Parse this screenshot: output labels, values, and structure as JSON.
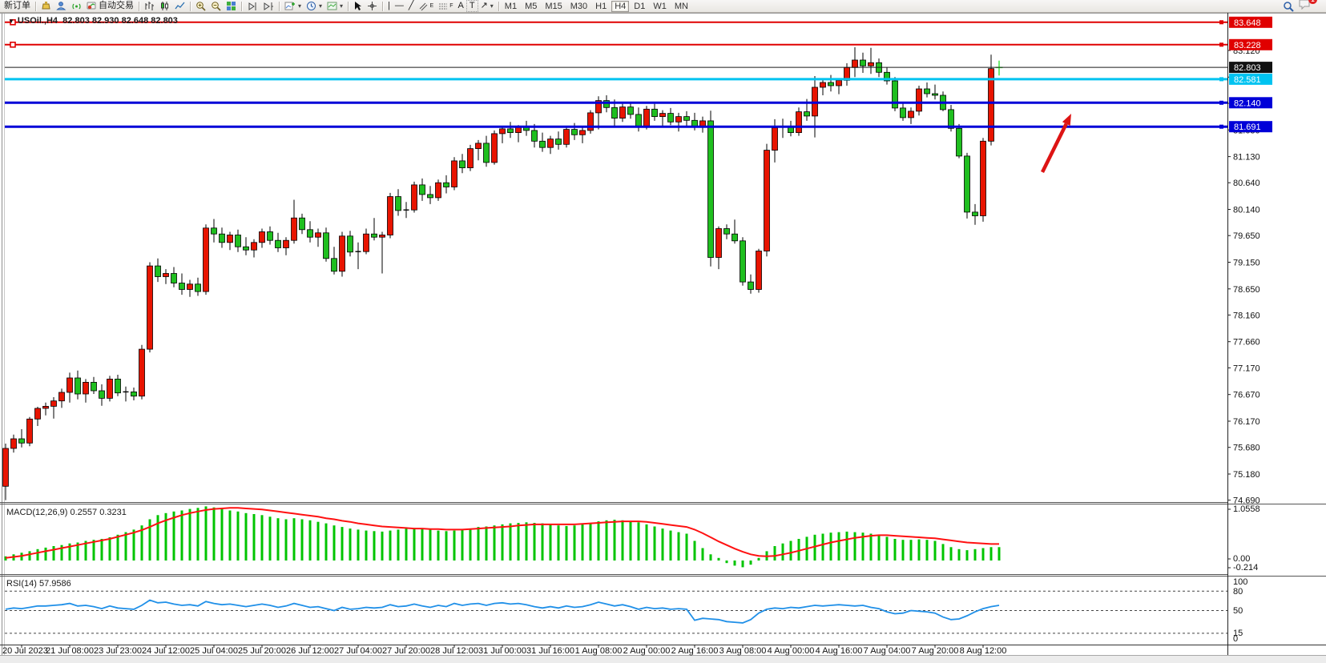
{
  "toolbar": {
    "new_order": "新订单",
    "autotrade": "自动交易",
    "timeframes": [
      "M1",
      "M5",
      "M15",
      "M30",
      "H1",
      "H4",
      "D1",
      "W1",
      "MN"
    ],
    "active_timeframe": "H4",
    "notification_count": "1",
    "tool_letters": {
      "channel": "E",
      "fibo": "F",
      "text": "A",
      "label": "T",
      "vline": "|",
      "hline": "—",
      "trend": "╱",
      "arrow": "↗"
    }
  },
  "chart": {
    "title": "USOil.,H4",
    "ohlc_text": "82.803 82.930 82.648 82.803",
    "current_price": "82.803",
    "price_ticks": [
      "83.120",
      "82.620",
      "82.130",
      "81.630",
      "81.130",
      "80.640",
      "80.140",
      "79.650",
      "79.150",
      "78.650",
      "78.160",
      "77.660",
      "77.170",
      "76.670",
      "76.170",
      "75.680",
      "75.180",
      "74.690"
    ],
    "time_labels": [
      "20 Jul 2023",
      "21 Jul 08:00",
      "23 Jul 23:00",
      "24 Jul 12:00",
      "25 Jul 04:00",
      "25 Jul 20:00",
      "26 Jul 12:00",
      "27 Jul 04:00",
      "27 Jul 20:00",
      "28 Jul 12:00",
      "31 Jul 00:00",
      "31 Jul 16:00",
      "1 Aug 08:00",
      "2 Aug 00:00",
      "2 Aug 16:00",
      "3 Aug 08:00",
      "4 Aug 00:00",
      "4 Aug 16:00",
      "7 Aug 04:00",
      "7 Aug 20:00",
      "8 Aug 12:00"
    ],
    "levels": [
      {
        "label": "83.648",
        "price": 83.648,
        "color": "#e00000",
        "width": 2,
        "left_handle": true
      },
      {
        "label": "83.228",
        "price": 83.228,
        "color": "#e00000",
        "width": 2,
        "left_handle": true
      },
      {
        "label": "82.803",
        "price": 82.803,
        "color": "#1a1a1a",
        "width": 1,
        "bid": true
      },
      {
        "label": "82.581",
        "price": 82.581,
        "color": "#00c3f0",
        "width": 3
      },
      {
        "label": "82.140",
        "price": 82.14,
        "color": "#0000d8",
        "width": 3
      },
      {
        "label": "81.691",
        "price": 81.691,
        "color": "#0000d8",
        "width": 3
      }
    ]
  },
  "macd": {
    "name": "MACD(12,26,9)",
    "value1": "0.2557",
    "value2": "0.3231",
    "axis": [
      "1.0558",
      "0.00",
      "-0.214"
    ]
  },
  "rsi": {
    "name": "RSI(14)",
    "value": "57.9586",
    "axis": [
      "100",
      "80",
      "50",
      "15",
      "0"
    ]
  },
  "colors": {
    "bull": "#e81400",
    "bear": "#1fbf1f",
    "wick": "#000000",
    "last": "#4ce84c",
    "hist": "#00c400",
    "signal": "#ff1111",
    "rsi_line": "#2090e8",
    "arrow": "#dd1414"
  },
  "chart_data": {
    "type": "candlestick",
    "symbol": "USOil",
    "period": "H4",
    "candles": [
      [
        74.95,
        75.75,
        74.69,
        75.66
      ],
      [
        75.66,
        75.92,
        75.58,
        75.84
      ],
      [
        75.84,
        76.02,
        75.68,
        75.76
      ],
      [
        75.76,
        76.25,
        75.7,
        76.21
      ],
      [
        76.21,
        76.44,
        76.08,
        76.41
      ],
      [
        76.41,
        76.52,
        76.28,
        76.45
      ],
      [
        76.45,
        76.62,
        76.22,
        76.55
      ],
      [
        76.55,
        76.78,
        76.42,
        76.71
      ],
      [
        76.71,
        77.08,
        76.52,
        76.98
      ],
      [
        76.98,
        77.12,
        76.58,
        76.68
      ],
      [
        76.68,
        76.96,
        76.52,
        76.9
      ],
      [
        76.9,
        77.0,
        76.68,
        76.74
      ],
      [
        76.74,
        76.86,
        76.46,
        76.6
      ],
      [
        76.6,
        77.02,
        76.54,
        76.96
      ],
      [
        76.96,
        77.04,
        76.64,
        76.7
      ],
      [
        76.7,
        76.82,
        76.54,
        76.72
      ],
      [
        76.72,
        76.8,
        76.56,
        76.64
      ],
      [
        76.64,
        77.6,
        76.58,
        77.52
      ],
      [
        77.52,
        79.15,
        77.46,
        79.08
      ],
      [
        79.08,
        79.22,
        78.78,
        78.88
      ],
      [
        78.88,
        79.02,
        78.74,
        78.94
      ],
      [
        78.94,
        79.06,
        78.68,
        78.76
      ],
      [
        78.76,
        78.94,
        78.54,
        78.64
      ],
      [
        78.64,
        78.82,
        78.5,
        78.74
      ],
      [
        78.74,
        78.86,
        78.52,
        78.6
      ],
      [
        78.6,
        79.86,
        78.54,
        79.79
      ],
      [
        79.79,
        79.96,
        79.52,
        79.68
      ],
      [
        79.68,
        79.8,
        79.42,
        79.52
      ],
      [
        79.52,
        79.72,
        79.38,
        79.66
      ],
      [
        79.66,
        79.76,
        79.34,
        79.44
      ],
      [
        79.44,
        79.62,
        79.28,
        79.38
      ],
      [
        79.38,
        79.58,
        79.24,
        79.52
      ],
      [
        79.52,
        79.78,
        79.42,
        79.72
      ],
      [
        79.72,
        79.82,
        79.48,
        79.56
      ],
      [
        79.56,
        79.7,
        79.34,
        79.42
      ],
      [
        79.42,
        79.62,
        79.28,
        79.56
      ],
      [
        79.56,
        80.32,
        79.5,
        79.98
      ],
      [
        79.98,
        80.06,
        79.68,
        79.76
      ],
      [
        79.76,
        79.92,
        79.52,
        79.62
      ],
      [
        79.62,
        79.78,
        79.44,
        79.7
      ],
      [
        79.7,
        79.8,
        79.16,
        79.22
      ],
      [
        79.22,
        79.44,
        78.92,
        78.98
      ],
      [
        78.98,
        79.72,
        78.88,
        79.64
      ],
      [
        79.64,
        79.74,
        79.26,
        79.34
      ],
      [
        79.34,
        79.52,
        79.02,
        79.35
      ],
      [
        79.35,
        79.78,
        79.3,
        79.68
      ],
      [
        79.68,
        79.98,
        79.56,
        79.62
      ],
      [
        79.62,
        79.72,
        78.94,
        79.66
      ],
      [
        79.66,
        80.45,
        79.6,
        80.38
      ],
      [
        80.38,
        80.52,
        80.02,
        80.12
      ],
      [
        80.12,
        80.28,
        79.98,
        80.13
      ],
      [
        80.13,
        80.66,
        80.08,
        80.6
      ],
      [
        80.6,
        80.72,
        80.3,
        80.42
      ],
      [
        80.42,
        80.58,
        80.24,
        80.36
      ],
      [
        80.36,
        80.7,
        80.3,
        80.64
      ],
      [
        80.64,
        80.78,
        80.44,
        80.56
      ],
      [
        80.56,
        81.12,
        80.5,
        81.05
      ],
      [
        81.05,
        81.18,
        80.82,
        80.92
      ],
      [
        80.92,
        81.35,
        80.86,
        81.28
      ],
      [
        81.28,
        81.44,
        81.06,
        81.38
      ],
      [
        81.38,
        81.52,
        80.94,
        81.02
      ],
      [
        81.02,
        81.62,
        80.98,
        81.56
      ],
      [
        81.56,
        81.7,
        81.38,
        81.65
      ],
      [
        81.65,
        81.78,
        81.48,
        81.58
      ],
      [
        81.58,
        81.72,
        81.4,
        81.68
      ],
      [
        81.68,
        81.8,
        81.52,
        81.62
      ],
      [
        81.62,
        81.74,
        81.3,
        81.42
      ],
      [
        81.42,
        81.58,
        81.22,
        81.3
      ],
      [
        81.3,
        81.52,
        81.18,
        81.46
      ],
      [
        81.46,
        81.6,
        81.26,
        81.36
      ],
      [
        81.36,
        81.7,
        81.3,
        81.64
      ],
      [
        81.64,
        81.76,
        81.44,
        81.54
      ],
      [
        81.54,
        81.7,
        81.38,
        81.62
      ],
      [
        81.62,
        82.0,
        81.56,
        81.95
      ],
      [
        81.95,
        82.26,
        81.64,
        82.18
      ],
      [
        82.18,
        82.28,
        81.96,
        82.05
      ],
      [
        82.05,
        82.2,
        81.7,
        81.85
      ],
      [
        81.85,
        82.12,
        81.78,
        82.06
      ],
      [
        82.06,
        82.16,
        81.84,
        81.92
      ],
      [
        81.92,
        82.05,
        81.6,
        81.7
      ],
      [
        81.7,
        82.08,
        81.64,
        82.02
      ],
      [
        82.02,
        82.12,
        81.8,
        81.88
      ],
      [
        81.88,
        82.0,
        81.68,
        81.94
      ],
      [
        81.94,
        82.04,
        81.72,
        81.78
      ],
      [
        81.78,
        81.95,
        81.6,
        81.88
      ],
      [
        81.88,
        81.98,
        81.7,
        81.81
      ],
      [
        81.81,
        81.95,
        81.62,
        81.7
      ],
      [
        81.7,
        81.88,
        81.58,
        81.8
      ],
      [
        81.8,
        81.99,
        79.07,
        79.24
      ],
      [
        79.24,
        79.82,
        79.02,
        79.78
      ],
      [
        79.78,
        79.86,
        79.58,
        79.68
      ],
      [
        79.68,
        79.95,
        79.5,
        79.55
      ],
      [
        79.55,
        79.62,
        78.71,
        78.78
      ],
      [
        78.78,
        78.92,
        78.56,
        78.64
      ],
      [
        78.64,
        79.4,
        78.58,
        79.36
      ],
      [
        79.36,
        81.37,
        79.26,
        81.25
      ],
      [
        81.25,
        81.83,
        81.02,
        81.67
      ],
      [
        81.67,
        81.84,
        81.48,
        81.69
      ],
      [
        81.69,
        81.8,
        81.51,
        81.58
      ],
      [
        81.58,
        82.05,
        81.52,
        81.97
      ],
      [
        81.97,
        82.21,
        81.8,
        81.89
      ],
      [
        81.89,
        82.64,
        81.49,
        82.43
      ],
      [
        82.43,
        82.6,
        82.28,
        82.52
      ],
      [
        82.52,
        82.66,
        82.35,
        82.46
      ],
      [
        82.46,
        82.6,
        82.3,
        82.56
      ],
      [
        82.56,
        82.88,
        82.46,
        82.8
      ],
      [
        82.8,
        83.18,
        82.62,
        82.94
      ],
      [
        82.94,
        83.08,
        82.7,
        82.83
      ],
      [
        82.83,
        83.17,
        82.68,
        82.89
      ],
      [
        82.89,
        82.97,
        82.62,
        82.71
      ],
      [
        82.71,
        82.8,
        82.48,
        82.55
      ],
      [
        82.55,
        82.62,
        81.98,
        82.04
      ],
      [
        82.04,
        82.15,
        81.8,
        81.86
      ],
      [
        81.86,
        82.05,
        81.74,
        81.98
      ],
      [
        81.98,
        82.46,
        81.9,
        82.4
      ],
      [
        82.4,
        82.52,
        82.24,
        82.31
      ],
      [
        82.31,
        82.48,
        82.2,
        82.28
      ],
      [
        82.28,
        82.35,
        81.98,
        82.01
      ],
      [
        82.01,
        82.1,
        81.6,
        81.66
      ],
      [
        81.66,
        81.74,
        81.1,
        81.14
      ],
      [
        81.14,
        81.2,
        79.97,
        80.09
      ],
      [
        80.09,
        80.24,
        79.85,
        80.02
      ],
      [
        80.02,
        81.48,
        79.91,
        81.42
      ],
      [
        81.42,
        83.04,
        81.34,
        82.78
      ],
      [
        82.8,
        82.93,
        82.65,
        82.8
      ]
    ],
    "macd_histogram": [
      0.08,
      0.12,
      0.15,
      0.18,
      0.22,
      0.25,
      0.28,
      0.3,
      0.33,
      0.35,
      0.38,
      0.4,
      0.42,
      0.45,
      0.5,
      0.55,
      0.6,
      0.68,
      0.8,
      0.88,
      0.92,
      0.95,
      0.97,
      1.0,
      1.02,
      1.05,
      1.03,
      1.0,
      0.97,
      0.95,
      0.92,
      0.9,
      0.88,
      0.85,
      0.82,
      0.8,
      0.82,
      0.8,
      0.78,
      0.75,
      0.72,
      0.68,
      0.65,
      0.62,
      0.6,
      0.58,
      0.57,
      0.56,
      0.58,
      0.6,
      0.62,
      0.63,
      0.62,
      0.6,
      0.58,
      0.57,
      0.58,
      0.6,
      0.62,
      0.65,
      0.66,
      0.68,
      0.7,
      0.72,
      0.73,
      0.74,
      0.73,
      0.72,
      0.7,
      0.68,
      0.67,
      0.68,
      0.7,
      0.73,
      0.76,
      0.78,
      0.79,
      0.78,
      0.76,
      0.74,
      0.7,
      0.66,
      0.62,
      0.58,
      0.55,
      0.52,
      0.38,
      0.24,
      0.12,
      0.05,
      -0.05,
      -0.1,
      -0.13,
      -0.08,
      0.05,
      0.18,
      0.28,
      0.33,
      0.38,
      0.42,
      0.46,
      0.5,
      0.52,
      0.54,
      0.55,
      0.56,
      0.55,
      0.54,
      0.52,
      0.5,
      0.46,
      0.42,
      0.4,
      0.4,
      0.41,
      0.4,
      0.38,
      0.32,
      0.26,
      0.22,
      0.2,
      0.22,
      0.24,
      0.26,
      0.26
    ],
    "macd_signal": [
      0.05,
      0.07,
      0.09,
      0.12,
      0.15,
      0.18,
      0.21,
      0.24,
      0.27,
      0.3,
      0.33,
      0.36,
      0.39,
      0.42,
      0.46,
      0.5,
      0.54,
      0.59,
      0.65,
      0.72,
      0.78,
      0.83,
      0.88,
      0.92,
      0.95,
      0.98,
      1.0,
      1.01,
      1.02,
      1.02,
      1.01,
      1.0,
      0.99,
      0.97,
      0.95,
      0.93,
      0.91,
      0.89,
      0.87,
      0.85,
      0.82,
      0.8,
      0.77,
      0.75,
      0.72,
      0.7,
      0.68,
      0.66,
      0.65,
      0.64,
      0.63,
      0.62,
      0.62,
      0.61,
      0.61,
      0.6,
      0.6,
      0.6,
      0.61,
      0.62,
      0.63,
      0.64,
      0.65,
      0.66,
      0.68,
      0.69,
      0.7,
      0.7,
      0.7,
      0.7,
      0.7,
      0.7,
      0.71,
      0.72,
      0.73,
      0.74,
      0.75,
      0.76,
      0.76,
      0.76,
      0.75,
      0.73,
      0.71,
      0.69,
      0.67,
      0.65,
      0.6,
      0.53,
      0.45,
      0.37,
      0.3,
      0.23,
      0.17,
      0.12,
      0.09,
      0.08,
      0.09,
      0.12,
      0.15,
      0.19,
      0.23,
      0.27,
      0.31,
      0.35,
      0.38,
      0.41,
      0.44,
      0.46,
      0.48,
      0.49,
      0.49,
      0.48,
      0.47,
      0.46,
      0.45,
      0.44,
      0.43,
      0.41,
      0.39,
      0.37,
      0.35,
      0.34,
      0.33,
      0.32,
      0.32
    ],
    "rsi_series": [
      52,
      54,
      53,
      55,
      57,
      57,
      58,
      59,
      61,
      57,
      58,
      56,
      53,
      57,
      54,
      53,
      52,
      58,
      66,
      62,
      63,
      60,
      58,
      59,
      57,
      64,
      61,
      59,
      60,
      58,
      56,
      58,
      60,
      58,
      55,
      57,
      61,
      58,
      55,
      56,
      53,
      50,
      55,
      52,
      53,
      55,
      54,
      55,
      59,
      56,
      57,
      60,
      57,
      55,
      58,
      56,
      61,
      58,
      60,
      61,
      58,
      61,
      62,
      60,
      61,
      59,
      56,
      54,
      56,
      54,
      57,
      55,
      56,
      59,
      63,
      60,
      57,
      59,
      56,
      52,
      55,
      53,
      54,
      52,
      53,
      52,
      35,
      38,
      37,
      36,
      33,
      32,
      31,
      36,
      46,
      52,
      54,
      53,
      55,
      54,
      56,
      58,
      57,
      58,
      59,
      58,
      57,
      58,
      55,
      53,
      48,
      45,
      46,
      50,
      49,
      48,
      46,
      40,
      36,
      37,
      42,
      48,
      53,
      56,
      58
    ],
    "rsi_levels": [
      80,
      50,
      15
    ],
    "annotations": [
      {
        "kind": "arrow",
        "direction": "up-right",
        "color": "#dd1414"
      }
    ]
  }
}
